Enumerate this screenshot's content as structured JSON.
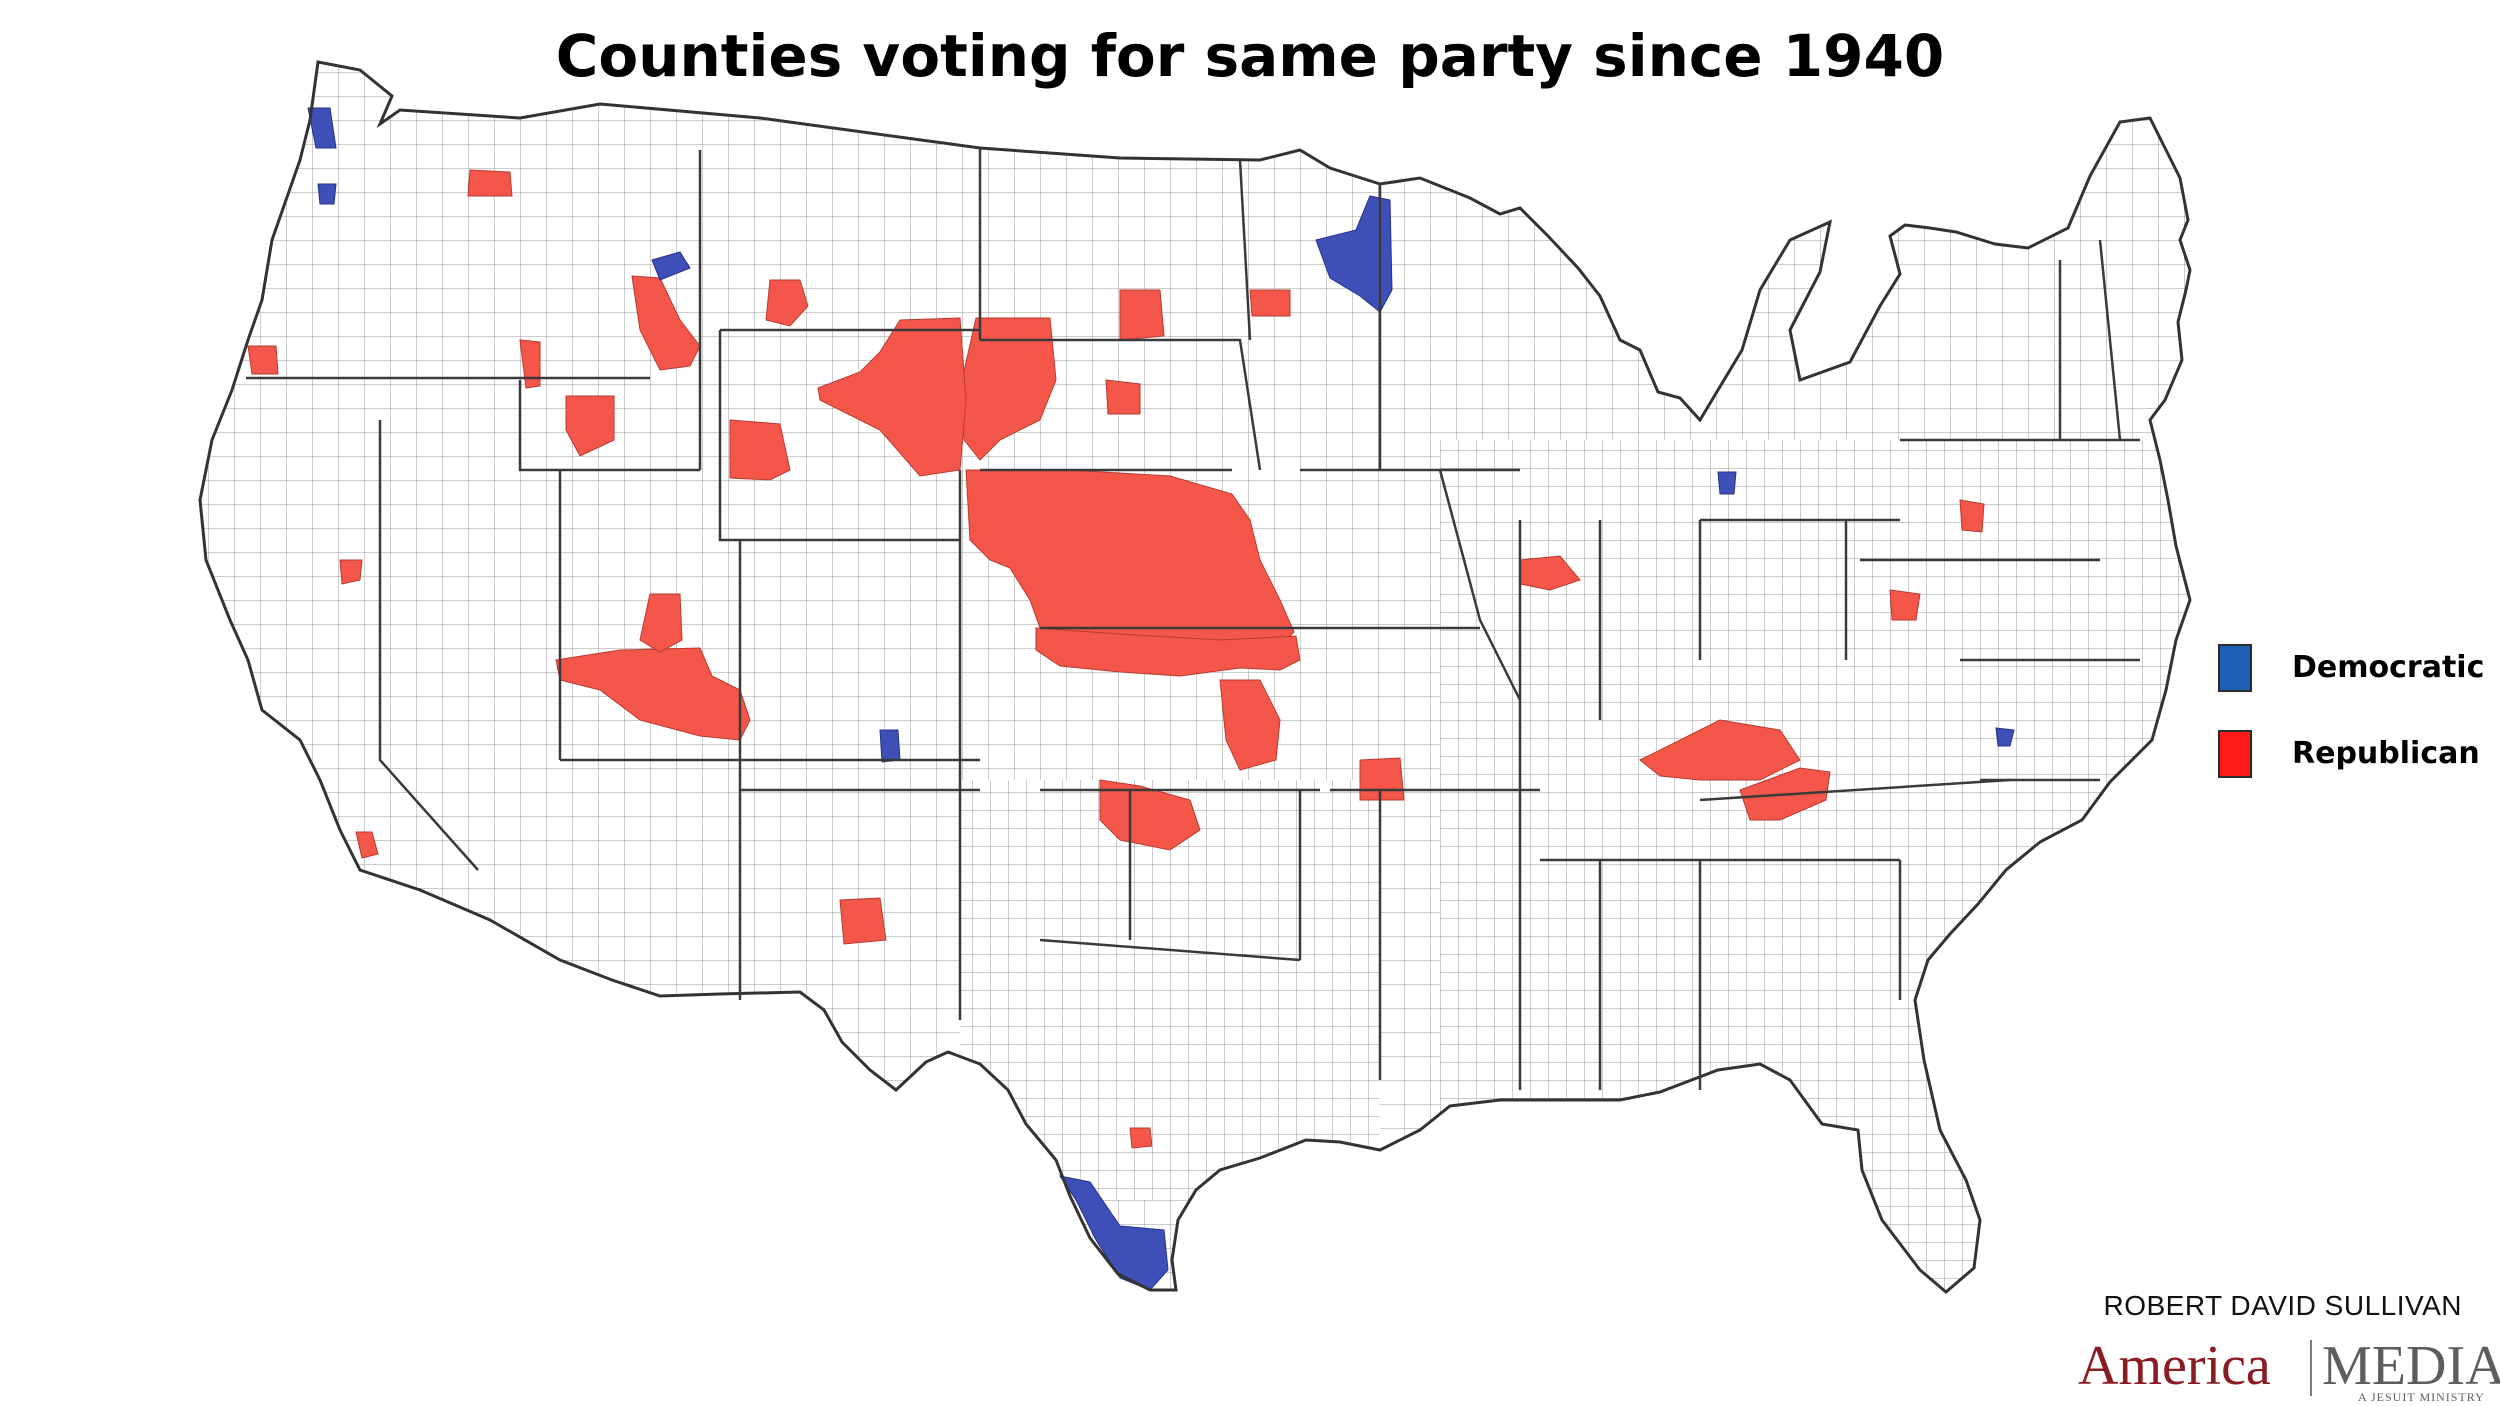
{
  "title": "Counties voting for same party since 1940",
  "legend": {
    "items": [
      {
        "label": "Democratic",
        "color": "#1f5fb5"
      },
      {
        "label": "Republican",
        "color": "#ff1a1a"
      }
    ]
  },
  "colors": {
    "democratic_fill": "#3f4fb8",
    "republican_fill": "#f4574a",
    "county_fill": "#ffffff",
    "border": "#444444"
  },
  "credit": "ROBERT DAVID SULLIVAN",
  "logo": {
    "left_word": "America",
    "right_word": "MEDIA",
    "tagline": "A JESUIT MINISTRY"
  }
}
